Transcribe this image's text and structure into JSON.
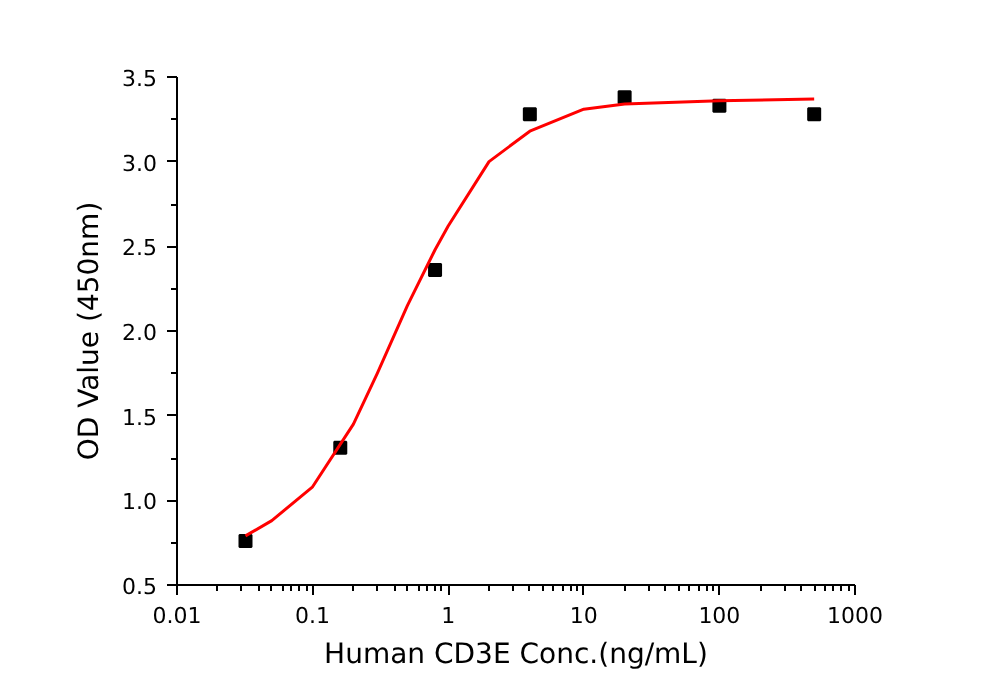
{
  "chart_data": {
    "type": "scatter",
    "xlabel": "Human CD3E Conc.(ng/mL)",
    "ylabel": "OD Value (450nm)",
    "log": "x",
    "xlim": [
      0.01,
      1000
    ],
    "xticks": [
      0.01,
      0.1,
      1,
      10,
      100,
      1000
    ],
    "ylim": [
      0.5,
      3.5
    ],
    "yticks": [
      0.5,
      {
        "value": 1,
        "label": "1.0"
      },
      1.5,
      {
        "value": 2,
        "label": "2.0"
      },
      2.5,
      {
        "value": 3,
        "label": "3.0"
      },
      3.5
    ],
    "grid": false,
    "marker": "square",
    "series": [
      {
        "color": "#000000",
        "x": [
          0.032,
          0.16,
          0.8,
          4,
          20,
          100,
          500
        ],
        "values": [
          0.76,
          1.31,
          2.36,
          3.28,
          3.38,
          3.33,
          3.28
        ]
      },
      {
        "type": "line",
        "color": "#ff0000",
        "marker": "none",
        "x": [
          0.032,
          0.05,
          0.1,
          0.2,
          0.3,
          0.5,
          0.8,
          1,
          2,
          4,
          10,
          20,
          100,
          500
        ],
        "values": [
          0.79,
          0.88,
          1.08,
          1.45,
          1.75,
          2.15,
          2.48,
          2.62,
          3.0,
          3.18,
          3.31,
          3.34,
          3.36,
          3.37
        ]
      }
    ]
  }
}
